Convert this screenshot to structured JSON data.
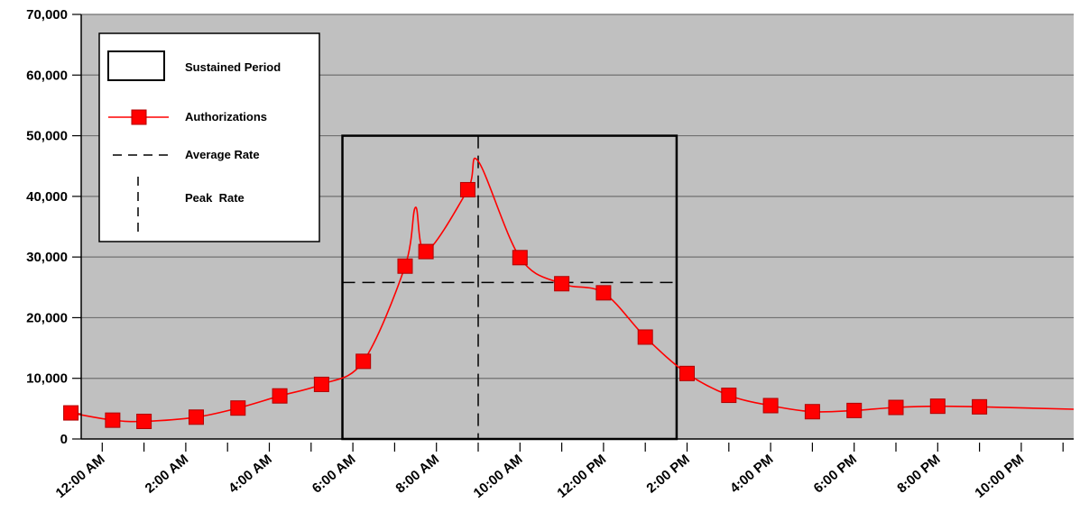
{
  "chart_data": {
    "type": "line",
    "title": "",
    "xlabel": "",
    "ylabel": "",
    "ylim": [
      0,
      70000
    ],
    "y_ticks": [
      "0",
      "10,000",
      "20,000",
      "30,000",
      "40,000",
      "50,000",
      "60,000",
      "70,000"
    ],
    "x_tick_labels": [
      "12:00 AM",
      "2:00 AM",
      "4:00 AM",
      "6:00 AM",
      "8:00 AM",
      "10:00 AM",
      "12:00 PM",
      "2:00 PM",
      "4:00 PM",
      "6:00 PM",
      "8:00 PM",
      "10:00 PM"
    ],
    "grid": "horizontal",
    "plot_background": "#c0c0c0",
    "series": [
      {
        "name": "Authorizations",
        "color": "#ff0000",
        "points": [
          {
            "hour": 0.25,
            "value": 4300
          },
          {
            "hour": 1.25,
            "value": 3100
          },
          {
            "hour": 2.0,
            "value": 2900
          },
          {
            "hour": 3.25,
            "value": 3600
          },
          {
            "hour": 4.25,
            "value": 5100
          },
          {
            "hour": 5.25,
            "value": 7100
          },
          {
            "hour": 6.25,
            "value": 9000
          },
          {
            "hour": 7.25,
            "value": 12800
          },
          {
            "hour": 8.25,
            "value": 28500
          },
          {
            "hour": 8.75,
            "value": 30900
          },
          {
            "hour": 9.75,
            "value": 41100
          },
          {
            "hour": 11.0,
            "value": 29900
          },
          {
            "hour": 12.0,
            "value": 25600
          },
          {
            "hour": 13.0,
            "value": 24100
          },
          {
            "hour": 14.0,
            "value": 16800
          },
          {
            "hour": 15.0,
            "value": 10800
          },
          {
            "hour": 16.0,
            "value": 7200
          },
          {
            "hour": 17.0,
            "value": 5500
          },
          {
            "hour": 18.0,
            "value": 4500
          },
          {
            "hour": 19.0,
            "value": 4700
          },
          {
            "hour": 20.0,
            "value": 5200
          },
          {
            "hour": 21.0,
            "value": 5400
          },
          {
            "hour": 22.0,
            "value": 5300
          }
        ],
        "curve_peaks": [
          {
            "hour": 8.5,
            "value": 38200
          },
          {
            "hour": 10.0,
            "value": 45800
          }
        ]
      }
    ],
    "sustained_period": {
      "start_hour": 6.75,
      "end_hour": 14.75,
      "top_value": 50000
    },
    "average_rate": {
      "value": 25800,
      "start_hour": 6.75,
      "end_hour": 14.75
    },
    "peak_rate": {
      "hour": 10.0
    },
    "legend": {
      "position": "top-left",
      "items": [
        {
          "label": "Sustained Period",
          "symbol": "box"
        },
        {
          "label": "Authorizations",
          "symbol": "line-square"
        },
        {
          "label": "Average Rate",
          "symbol": "dashed-horizontal"
        },
        {
          "label": "Peak  Rate",
          "symbol": "dashed-vertical"
        }
      ]
    }
  }
}
